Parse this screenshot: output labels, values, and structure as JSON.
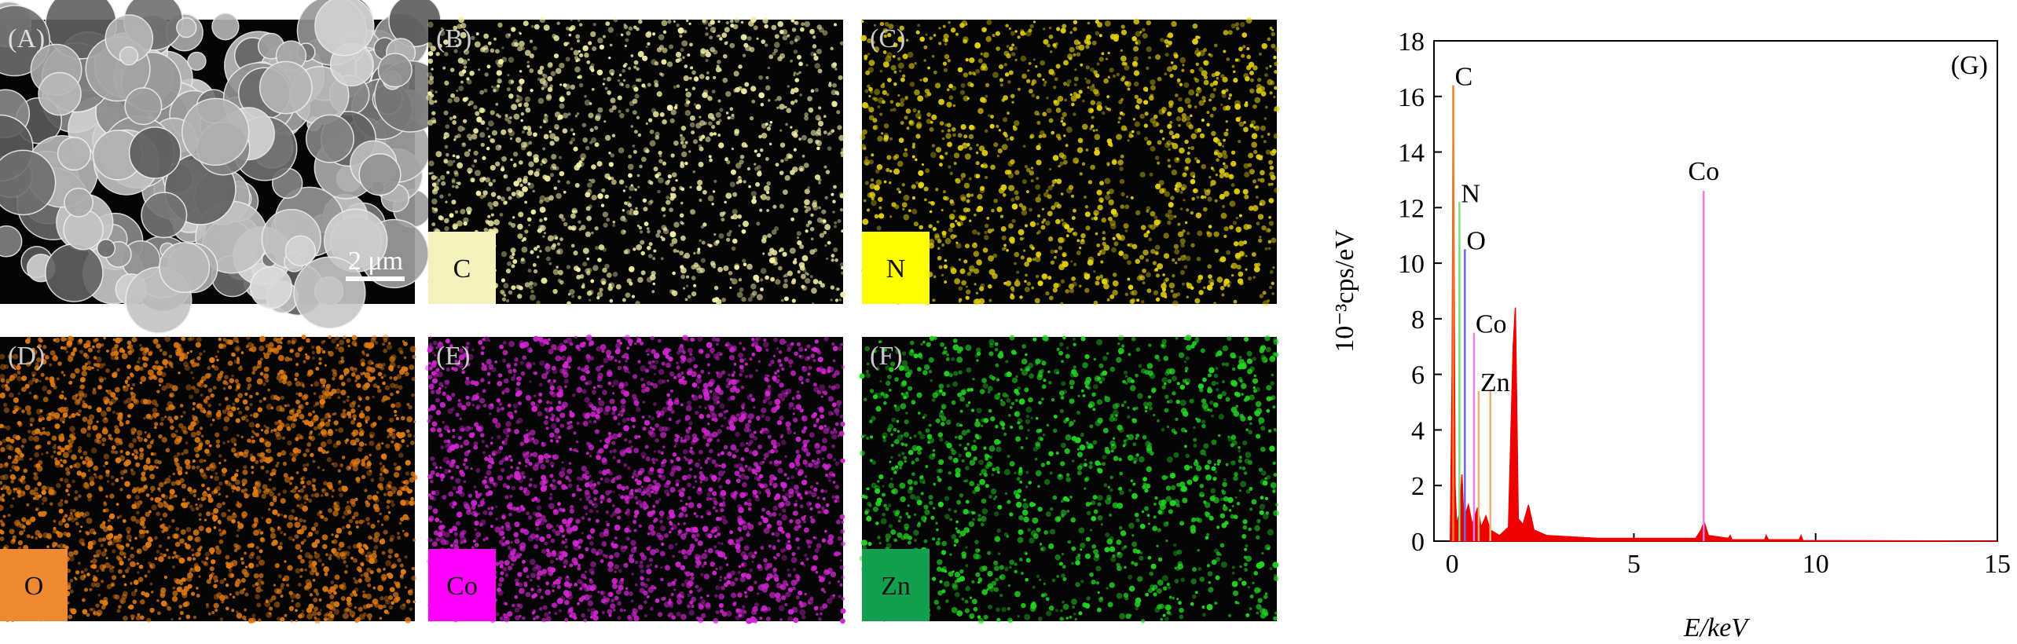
{
  "panels": [
    {
      "label": "(A)",
      "scale_bar": "2 μm"
    },
    {
      "label": "(B)",
      "element": "C",
      "color": "#f2eea6",
      "box_color": "#f5f1bd"
    },
    {
      "label": "(C)",
      "element": "N",
      "color": "#e6d20c",
      "box_color": "#ffff00"
    },
    {
      "label": "(D)",
      "element": "O",
      "color": "#e07a12",
      "box_color": "#f08a32"
    },
    {
      "label": "(E)",
      "element": "Co",
      "color": "#d225d2",
      "box_color": "#ff00ff"
    },
    {
      "label": "(F)",
      "element": "Zn",
      "color": "#22d622",
      "box_color": "#12a04e"
    }
  ],
  "chart_data": {
    "type": "area",
    "panel_label": "(G)",
    "x_label": "E/keV",
    "y_label": "10⁻³cps/eV",
    "color": "#ee0000",
    "x": [
      -0.05,
      0,
      0.03,
      0.08,
      0.12,
      0.2,
      0.27,
      0.32,
      0.45,
      0.55,
      0.7,
      0.8,
      0.93,
      1.05,
      1.3,
      1.55,
      1.68,
      1.74,
      1.82,
      1.95,
      2.1,
      2.25,
      2.6,
      4,
      6.7,
      6.85,
      6.93,
      7.05,
      7.6,
      7.65,
      7.7,
      8.6,
      8.64,
      8.7,
      9.55,
      9.6,
      9.65,
      15
    ],
    "values": [
      0,
      6,
      16.3,
      2,
      0.6,
      1,
      2.4,
      0.8,
      1.3,
      0.6,
      1.2,
      0.5,
      0.9,
      0.4,
      0.2,
      0.5,
      7,
      8.4,
      0.8,
      0.6,
      1.3,
      0.4,
      0.2,
      0.1,
      0.1,
      0.4,
      0.7,
      0.2,
      0.1,
      0.2,
      0.05,
      0.05,
      0.2,
      0.05,
      0.05,
      0.2,
      0.02,
      0
    ],
    "peaks": [
      {
        "label": "C",
        "color": "#f07f22",
        "energy": [
          0.03
        ],
        "height": [
          16.4
        ]
      },
      {
        "label": "N",
        "color": "#7ee07e",
        "energy": [
          0.2
        ],
        "height": [
          12.2
        ]
      },
      {
        "label": "O",
        "color": "#6a6af0",
        "energy": [
          0.35
        ],
        "height": [
          10.5
        ]
      },
      {
        "label": "Co",
        "color": "#ee7cee",
        "energy": [
          0.6
        ],
        "height": [
          7.5
        ]
      },
      {
        "label": "Zn",
        "color": "#f0b070",
        "energy": [
          0.73,
          1.05
        ],
        "height": [
          5.4,
          5.4
        ]
      },
      {
        "label": "Co",
        "color": "#ee7cee",
        "energy": [
          6.92
        ],
        "height": [
          12.6
        ]
      }
    ],
    "xlim": [
      -0.5,
      15
    ],
    "ylim": [
      0,
      18
    ],
    "xticks": [
      0,
      5,
      10,
      15
    ],
    "yticks": [
      0,
      2,
      4,
      6,
      8,
      10,
      12,
      14,
      16,
      18
    ]
  }
}
